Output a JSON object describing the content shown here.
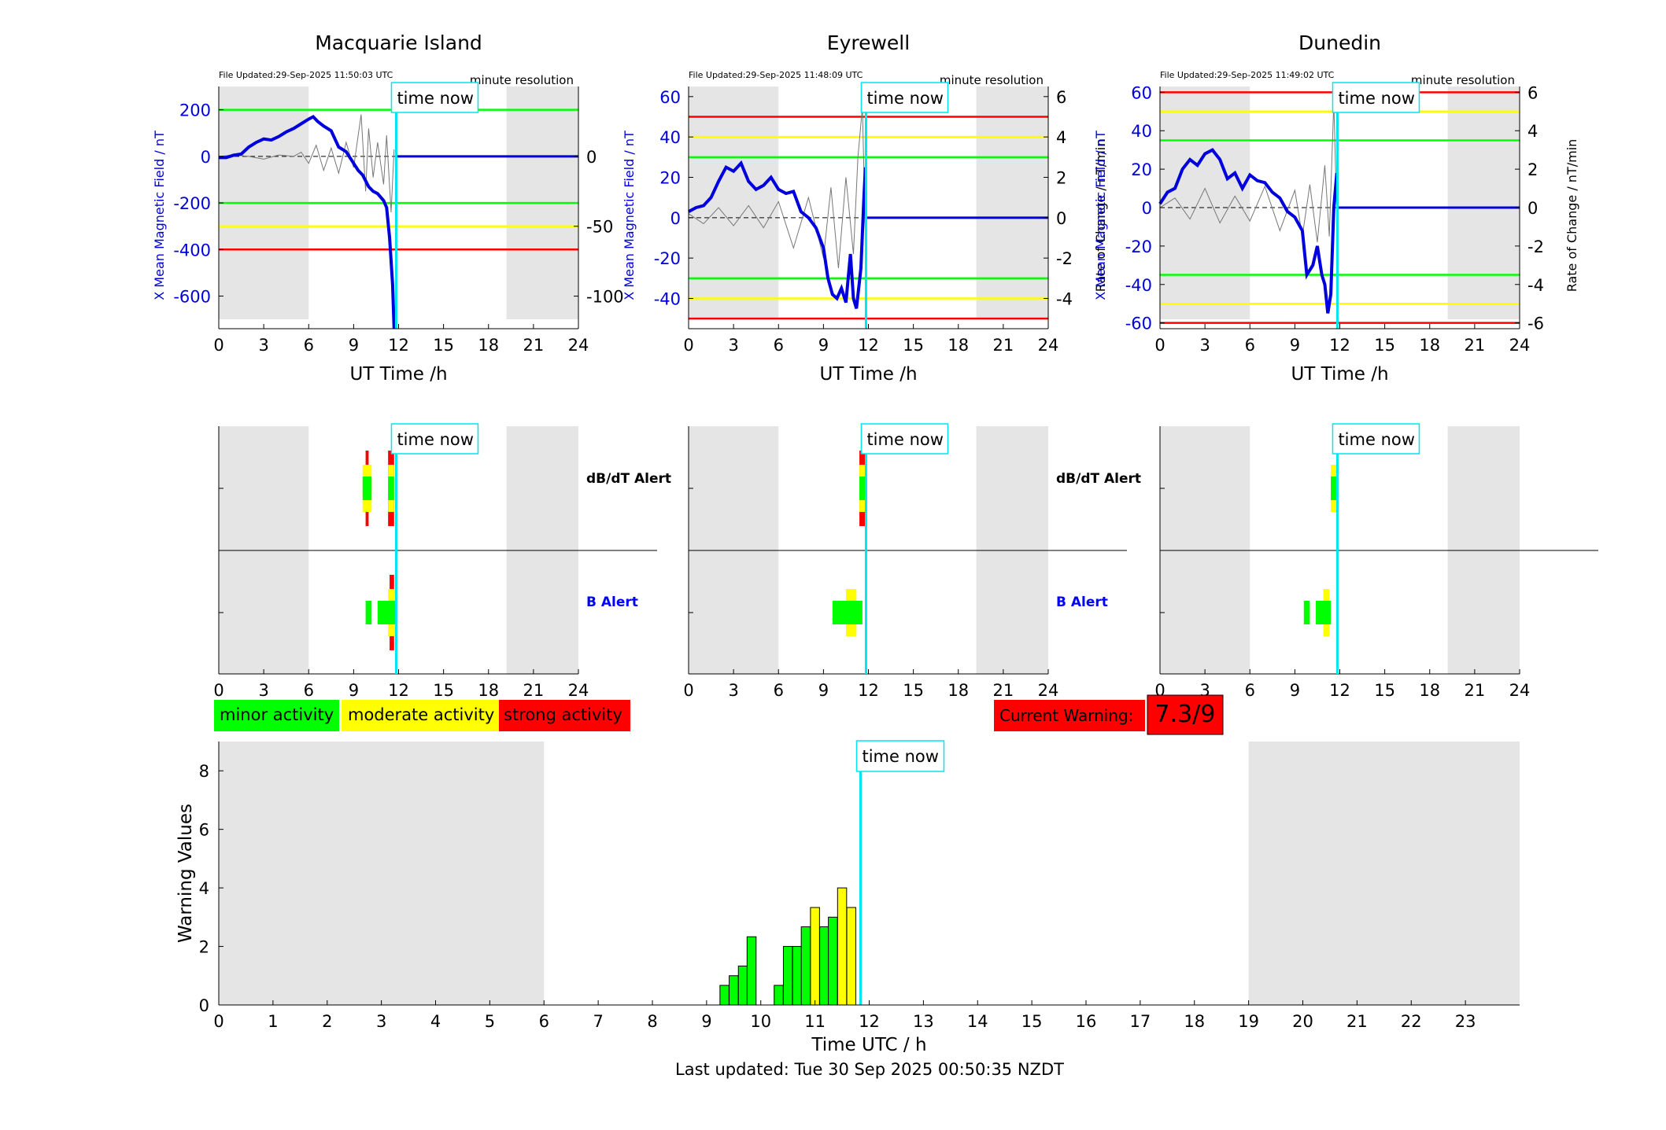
{
  "page": {
    "last_updated": "Last updated: Tue 30 Sep 2025 00:50:35 NZDT"
  },
  "colors": {
    "minor": "#00ff00",
    "moderate": "#ffff00",
    "strong": "#ff0000",
    "now": "#00e5ee",
    "field": "#0000dd",
    "night": "#e5e5e5"
  },
  "time_now_label": "time now",
  "time_now_h": 11.84,
  "top_panels": [
    {
      "station": "Macquarie Island",
      "file_updated": "File Updated:29-Sep-2025 11:50:03 UTC",
      "resolution": "minute resolution",
      "ylabel_left": "X Mean Magnetic Field / nT",
      "ylabel_right": "",
      "left_ylim": [
        -740,
        300
      ],
      "right_ylim": [
        -123.3,
        50
      ],
      "left_ticks": [
        "200",
        "0",
        "-200",
        "-400",
        "-600"
      ],
      "left_tick_values": [
        200,
        0,
        -200,
        -400,
        -600
      ],
      "right_ticks": [
        "0",
        "-50",
        "-100"
      ],
      "right_tick_values": [
        0,
        -50,
        -100
      ],
      "thresholds": [
        {
          "level": "minor",
          "values": [
            200,
            -200
          ]
        },
        {
          "level": "moderate",
          "values": [
            -300
          ]
        },
        {
          "level": "strong",
          "values": [
            -400
          ]
        }
      ],
      "field_x": [
        0,
        0.5,
        1,
        1.5,
        2,
        2.5,
        3,
        3.5,
        4,
        4.5,
        5,
        5.5,
        6,
        6.3,
        6.6,
        7,
        7.5,
        8,
        8.5,
        9,
        9.3,
        9.6,
        10,
        10.3,
        10.6,
        11,
        11.2,
        11.4,
        11.6,
        11.7,
        11.8
      ],
      "field_y": [
        -5,
        -5,
        5,
        10,
        40,
        60,
        75,
        70,
        85,
        105,
        120,
        140,
        160,
        170,
        150,
        130,
        110,
        40,
        20,
        -30,
        -60,
        -80,
        -130,
        -150,
        -160,
        -190,
        -220,
        -350,
        -550,
        -740,
        -720
      ],
      "roc_x": [
        0,
        1,
        2,
        3,
        4,
        5,
        5.5,
        6,
        6.5,
        7,
        7.5,
        8,
        8.5,
        9,
        9.5,
        9.8,
        10,
        10.3,
        10.6,
        11,
        11.2,
        11.5,
        11.7
      ],
      "roc_y": [
        0,
        1,
        0,
        -2,
        1,
        0,
        3,
        -5,
        8,
        -10,
        6,
        -12,
        10,
        -8,
        30,
        -25,
        20,
        -15,
        10,
        -20,
        15,
        -40,
        5
      ],
      "night_bands": [
        [
          0,
          6
        ],
        [
          19.2,
          24
        ]
      ]
    },
    {
      "station": "Eyrewell",
      "file_updated": "File Updated:29-Sep-2025 11:48:09 UTC",
      "resolution": "minute resolution",
      "ylabel_left": "X Mean Magnetic Field / nT",
      "ylabel_right": "Rate of Change / nT/min",
      "left_ylim": [
        -55,
        65
      ],
      "right_ylim": [
        -5.5,
        6.5
      ],
      "left_ticks": [
        "60",
        "40",
        "20",
        "0",
        "-20",
        "-40"
      ],
      "left_tick_values": [
        60,
        40,
        20,
        0,
        -20,
        -40
      ],
      "right_ticks": [
        "6",
        "4",
        "2",
        "0",
        "-2",
        "-4"
      ],
      "right_tick_values": [
        6,
        4,
        2,
        0,
        -2,
        -4
      ],
      "thresholds": [
        {
          "level": "minor",
          "values": [
            30,
            -30
          ]
        },
        {
          "level": "moderate",
          "values": [
            40,
            -40
          ]
        },
        {
          "level": "strong",
          "values": [
            50,
            -50
          ]
        }
      ],
      "field_x": [
        0,
        0.5,
        1,
        1.5,
        2,
        2.5,
        3,
        3.5,
        4,
        4.5,
        5,
        5.5,
        6,
        6.5,
        7,
        7.5,
        8,
        8.5,
        9,
        9.3,
        9.6,
        9.9,
        10.2,
        10.5,
        10.8,
        11,
        11.2,
        11.5,
        11.7,
        11.8
      ],
      "field_y": [
        3,
        5,
        6,
        10,
        18,
        25,
        23,
        27,
        18,
        14,
        16,
        20,
        14,
        12,
        13,
        3,
        0,
        -5,
        -15,
        -30,
        -38,
        -40,
        -35,
        -42,
        -18,
        -40,
        -45,
        -25,
        10,
        25
      ],
      "roc_x": [
        0,
        1,
        2,
        3,
        4,
        5,
        6,
        7,
        8,
        9,
        9.5,
        10,
        10.5,
        11,
        11.3,
        11.6,
        11.8
      ],
      "roc_y": [
        0.2,
        -0.3,
        0.5,
        -0.4,
        0.6,
        -0.5,
        0.8,
        -1.5,
        1,
        -2,
        1.5,
        -2.5,
        2,
        -1.8,
        3,
        5.5,
        -1
      ],
      "night_bands": [
        [
          0,
          6
        ],
        [
          19.2,
          24
        ]
      ]
    },
    {
      "station": "Dunedin",
      "file_updated": "File Updated:29-Sep-2025 11:49:02 UTC",
      "resolution": "minute resolution",
      "ylabel_left": "X Mean Magnetic Field / nT",
      "ylabel_right": "Rate of Change / nT/min",
      "left_ylim": [
        -63,
        63
      ],
      "right_ylim": [
        -6.3,
        6.3
      ],
      "left_ticks": [
        "60",
        "40",
        "20",
        "0",
        "-20",
        "-40",
        "-60"
      ],
      "left_tick_values": [
        60,
        40,
        20,
        0,
        -20,
        -40,
        -60
      ],
      "right_ticks": [
        "6",
        "4",
        "2",
        "0",
        "-2",
        "-4",
        "-6"
      ],
      "right_tick_values": [
        6,
        4,
        2,
        0,
        -2,
        -4,
        -6
      ],
      "thresholds": [
        {
          "level": "minor",
          "values": [
            35,
            -35
          ]
        },
        {
          "level": "moderate",
          "values": [
            50,
            -50
          ]
        },
        {
          "level": "strong",
          "values": [
            60,
            -60
          ]
        }
      ],
      "field_x": [
        0,
        0.5,
        1,
        1.5,
        2,
        2.5,
        3,
        3.5,
        4,
        4.5,
        5,
        5.5,
        6,
        6.5,
        7,
        7.5,
        8,
        8.5,
        9,
        9.5,
        9.8,
        10.2,
        10.5,
        10.8,
        11,
        11.2,
        11.4,
        11.6,
        11.8
      ],
      "field_y": [
        2,
        8,
        10,
        20,
        25,
        22,
        28,
        30,
        25,
        15,
        18,
        10,
        17,
        14,
        13,
        8,
        5,
        -2,
        -5,
        -12,
        -35,
        -30,
        -20,
        -35,
        -40,
        -55,
        -45,
        0,
        18
      ],
      "roc_x": [
        0,
        1,
        2,
        3,
        4,
        5,
        6,
        7,
        8,
        9,
        9.5,
        10,
        10.5,
        11,
        11.3,
        11.6,
        11.8
      ],
      "roc_y": [
        0,
        0.5,
        -0.6,
        1,
        -0.8,
        0.6,
        -0.7,
        1.1,
        -1.2,
        0.9,
        -1.5,
        1.2,
        -1.8,
        2.2,
        -1.5,
        5.5,
        -0.5
      ],
      "night_bands": [
        [
          0,
          6
        ],
        [
          19.2,
          24
        ]
      ]
    }
  ],
  "alert_panels": [
    {
      "dbdt_label": "dB/dT Alert",
      "b_label": "B Alert",
      "dbdt_bars": [
        {
          "x0": 9.6,
          "x1": 10.2,
          "level": "minor"
        },
        {
          "x0": 11.3,
          "x1": 11.7,
          "level": "minor"
        },
        {
          "x0": 9.6,
          "x1": 10.2,
          "level": "moderate"
        },
        {
          "x0": 11.3,
          "x1": 11.7,
          "level": "moderate"
        },
        {
          "x0": 9.8,
          "x1": 10.0,
          "level": "strong"
        },
        {
          "x0": 11.3,
          "x1": 11.7,
          "level": "strong"
        }
      ],
      "b_bars": [
        {
          "x0": 9.8,
          "x1": 10.2,
          "level": "minor"
        },
        {
          "x0": 10.6,
          "x1": 11.8,
          "level": "minor"
        },
        {
          "x0": 11.3,
          "x1": 11.8,
          "level": "moderate"
        },
        {
          "x0": 11.4,
          "x1": 11.7,
          "level": "strong"
        }
      ]
    },
    {
      "dbdt_label": "dB/dT Alert",
      "b_label": "B Alert",
      "dbdt_bars": [
        {
          "x0": 11.4,
          "x1": 11.8,
          "level": "minor"
        },
        {
          "x0": 11.4,
          "x1": 11.8,
          "level": "moderate"
        },
        {
          "x0": 11.4,
          "x1": 11.8,
          "level": "strong"
        }
      ],
      "b_bars": [
        {
          "x0": 9.6,
          "x1": 11.6,
          "level": "minor"
        },
        {
          "x0": 10.5,
          "x1": 11.2,
          "level": "moderate"
        }
      ]
    },
    {
      "dbdt_label": "",
      "b_label": "",
      "dbdt_bars": [
        {
          "x0": 11.4,
          "x1": 11.8,
          "level": "minor"
        },
        {
          "x0": 11.4,
          "x1": 11.8,
          "level": "moderate"
        }
      ],
      "b_bars": [
        {
          "x0": 9.6,
          "x1": 10.0,
          "level": "minor"
        },
        {
          "x0": 10.4,
          "x1": 11.4,
          "level": "minor"
        },
        {
          "x0": 10.9,
          "x1": 11.3,
          "level": "moderate"
        }
      ]
    }
  ],
  "alert_axis_ticks": [
    "0",
    "3",
    "6",
    "9",
    "12",
    "15",
    "18",
    "21",
    "24"
  ],
  "top_axis_ticks": [
    "0",
    "3",
    "6",
    "9",
    "12",
    "15",
    "18",
    "21",
    "24"
  ],
  "top_xlabel": "UT Time /h",
  "legend": {
    "minor": "minor activity",
    "moderate": "moderate activity",
    "strong": "strong activity"
  },
  "current_warning": {
    "label": "Current Warning:",
    "value": "7.3/9"
  },
  "chart_data": {
    "type": "bar",
    "title": "",
    "xlabel": "Time UTC / h",
    "ylabel": "Warning Values",
    "ylim": [
      0,
      9
    ],
    "xlim": [
      0,
      24
    ],
    "xticks": [
      "0",
      "1",
      "2",
      "3",
      "4",
      "5",
      "6",
      "7",
      "8",
      "9",
      "10",
      "11",
      "12",
      "13",
      "14",
      "15",
      "16",
      "17",
      "18",
      "19",
      "20",
      "21",
      "22",
      "23"
    ],
    "yticks": [
      "0",
      "2",
      "4",
      "6",
      "8"
    ],
    "bar_width_h": 0.1667,
    "x": [
      9.33,
      9.5,
      9.67,
      9.83,
      10.33,
      10.5,
      10.67,
      10.83,
      11.0,
      11.17,
      11.33,
      11.5,
      11.67
    ],
    "values": [
      0.67,
      1.0,
      1.33,
      2.33,
      0.67,
      2.0,
      2.0,
      2.67,
      3.33,
      2.67,
      3.0,
      4.0,
      3.33
    ],
    "levels": [
      "minor",
      "minor",
      "minor",
      "minor",
      "minor",
      "minor",
      "minor",
      "minor",
      "moderate",
      "minor",
      "minor",
      "moderate",
      "moderate"
    ],
    "night_bands": [
      [
        0,
        6
      ],
      [
        19,
        24
      ]
    ]
  }
}
